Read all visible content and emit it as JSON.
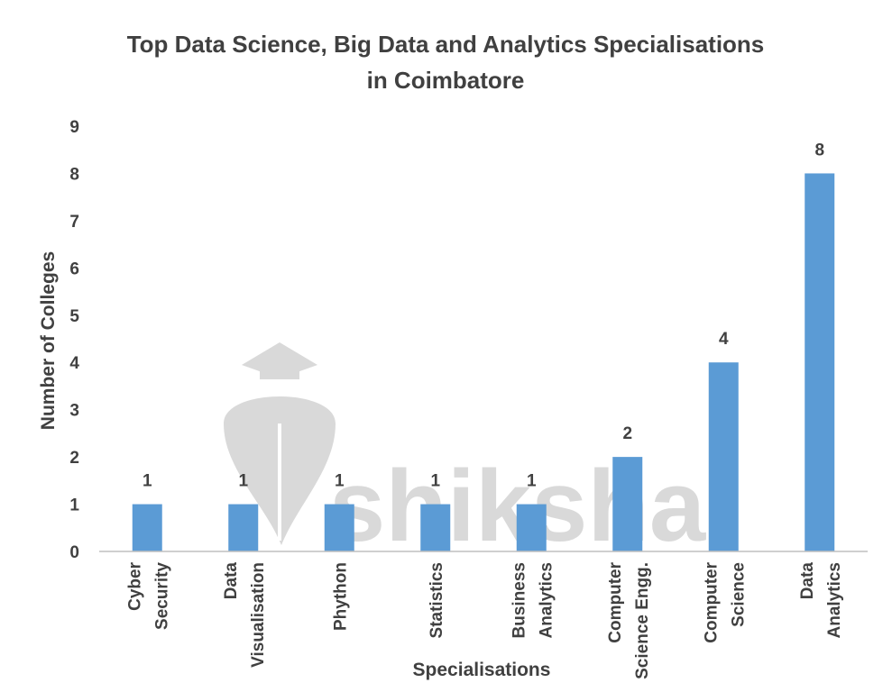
{
  "title_lines": [
    "Top Data Science, Big Data and Analytics Specialisations",
    "in Coimbatore"
  ],
  "watermark_text": "shiksha",
  "colors": {
    "bar": "#5b9bd5",
    "text": "#404040",
    "axis": "#bfbfbf",
    "watermark": "#d9d9d9"
  },
  "chart_data": {
    "type": "bar",
    "title": "Top Data Science, Big Data and Analytics Specialisations in Coimbatore",
    "xlabel": "Specialisations",
    "ylabel": "Number of Colleges",
    "ylim": [
      0,
      9
    ],
    "yticks": [
      0,
      1,
      2,
      3,
      4,
      5,
      6,
      7,
      8,
      9
    ],
    "grid": false,
    "legend": "none",
    "categories": [
      [
        "Cyber",
        "Security"
      ],
      [
        "Data",
        "Visualisation"
      ],
      [
        "Phython"
      ],
      [
        "Statistics"
      ],
      [
        "Business",
        "Analytics"
      ],
      [
        "Computer",
        "Science Engg."
      ],
      [
        "Computer",
        "Science"
      ],
      [
        "Data",
        "Analytics"
      ]
    ],
    "values": [
      1,
      1,
      1,
      1,
      1,
      2,
      4,
      8
    ],
    "data_labels": [
      "1",
      "1",
      "1",
      "1",
      "1",
      "2",
      "4",
      "8"
    ]
  }
}
